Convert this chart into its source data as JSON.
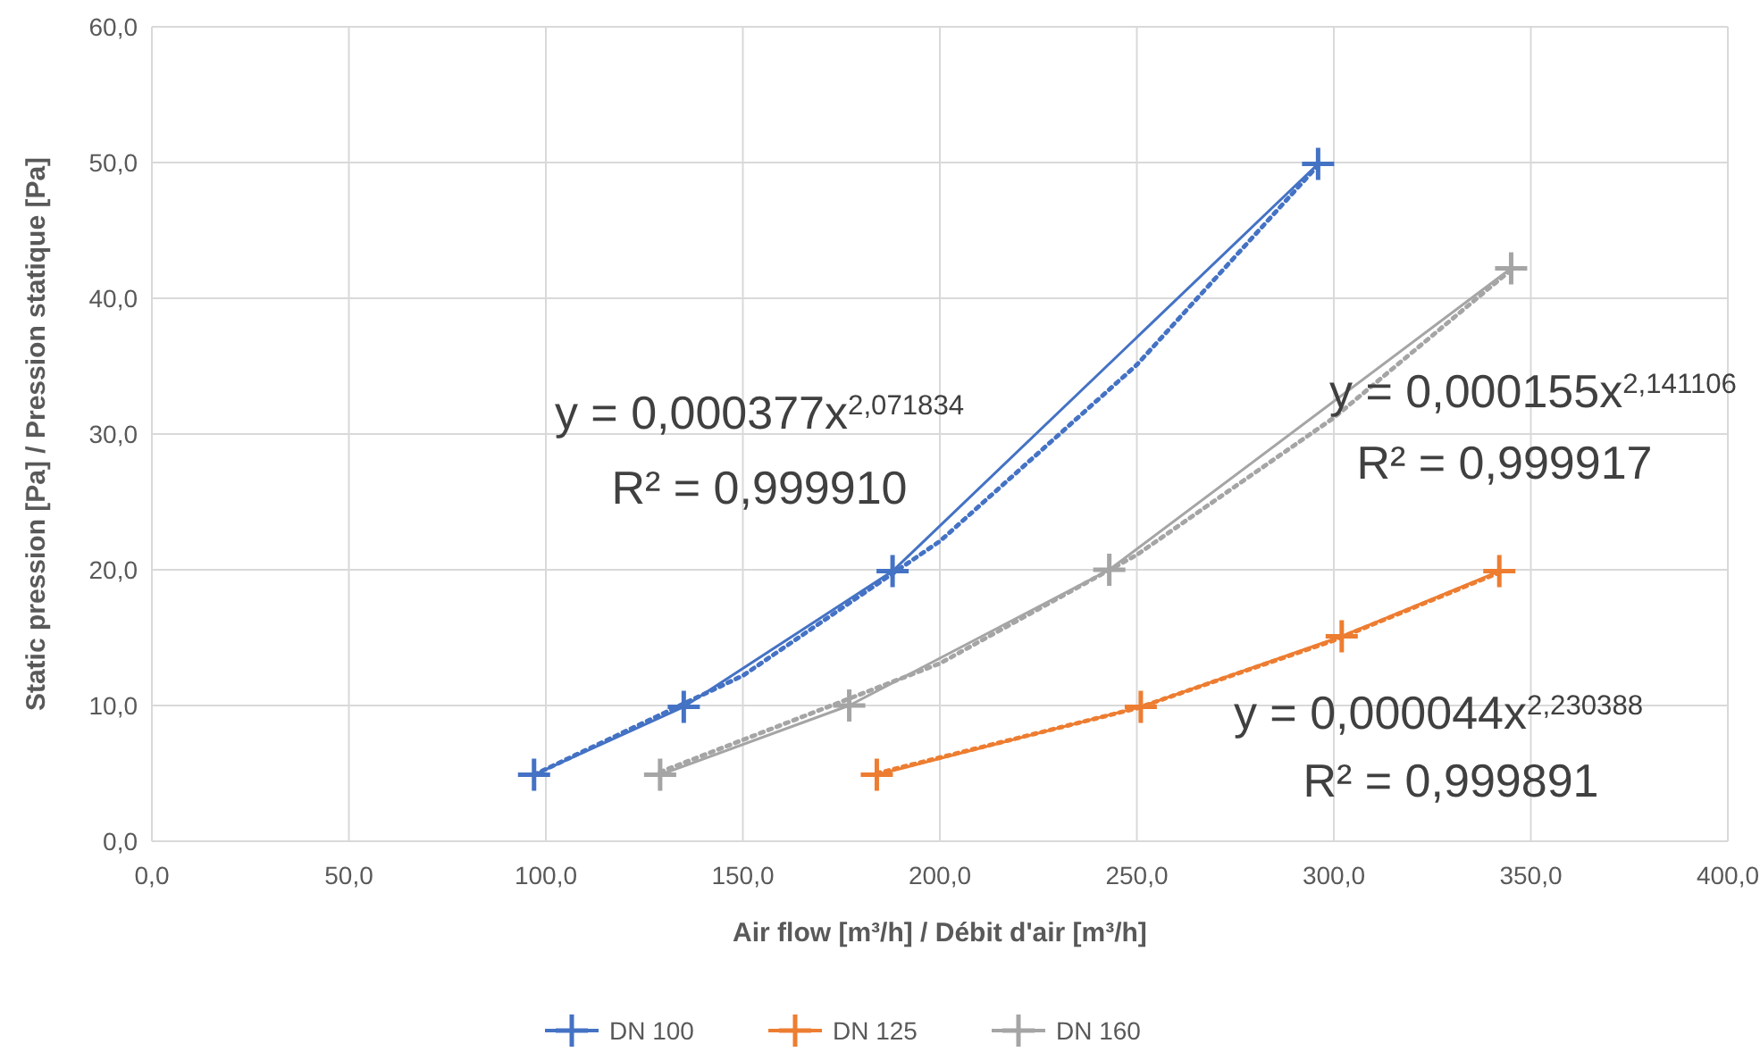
{
  "chart_data": {
    "type": "line",
    "xlabel": "Air flow [m³/h] / Débit d'air [m³/h]",
    "ylabel": "Static pression [Pa] / Pression statique [Pa]",
    "xlim": [
      0,
      400
    ],
    "ylim": [
      0,
      60
    ],
    "xticks": [
      {
        "value": 0,
        "label": "0,0"
      },
      {
        "value": 50,
        "label": "50,0"
      },
      {
        "value": 100,
        "label": "100,0"
      },
      {
        "value": 150,
        "label": "150,0"
      },
      {
        "value": 200,
        "label": "200,0"
      },
      {
        "value": 250,
        "label": "250,0"
      },
      {
        "value": 300,
        "label": "300,0"
      },
      {
        "value": 350,
        "label": "350,0"
      },
      {
        "value": 400,
        "label": "400,0"
      }
    ],
    "yticks": [
      {
        "value": 0,
        "label": "0,0"
      },
      {
        "value": 10,
        "label": "10,0"
      },
      {
        "value": 20,
        "label": "20,0"
      },
      {
        "value": 30,
        "label": "30,0"
      },
      {
        "value": 40,
        "label": "40,0"
      },
      {
        "value": 50,
        "label": "50,0"
      },
      {
        "value": 60,
        "label": "60,0"
      }
    ],
    "grid": true,
    "legend": "bottom",
    "marker": "cross",
    "line_style": "solid",
    "series": [
      {
        "name": "DN 100",
        "color": "#4472c4",
        "x": [
          97,
          135,
          188,
          296
        ],
        "values": [
          4.9,
          9.9,
          19.9,
          49.9
        ]
      },
      {
        "name": "DN 125",
        "color": "#ed7d31",
        "x": [
          184,
          251,
          302,
          342
        ],
        "values": [
          4.9,
          9.9,
          15.1,
          19.9
        ]
      },
      {
        "name": "DN 160",
        "color": "#a5a5a5",
        "x": [
          129,
          177,
          243,
          345
        ],
        "values": [
          4.9,
          10,
          20,
          42.2
        ]
      },
      {
        "type": "line",
        "color": "#4472c4",
        "line_style": "dotted",
        "marker": "none",
        "x": [
          97,
          150,
          200,
          250,
          296
        ],
        "values": [
          4.9,
          12.2,
          22.1,
          35.1,
          49.8
        ]
      },
      {
        "type": "line",
        "color": "#ed7d31",
        "line_style": "dotted",
        "marker": "none",
        "x": [
          184,
          250,
          300,
          342
        ],
        "values": [
          5,
          9.8,
          14.8,
          19.8
        ]
      },
      {
        "type": "line",
        "color": "#a5a5a5",
        "line_style": "dotted",
        "marker": "none",
        "x": [
          129,
          200,
          250,
          300,
          345
        ],
        "values": [
          5.1,
          13.1,
          21.1,
          31.2,
          42.1
        ]
      }
    ],
    "annotations": [
      "y = 0,000377x$^{2,071834}$",
      "R² = 0,999910",
      "y = 0,000155x$^{2,141106}$",
      "R² = 0,999917",
      "y = 0,000044x$^{2,230388}$",
      "R² = 0,999891"
    ]
  }
}
